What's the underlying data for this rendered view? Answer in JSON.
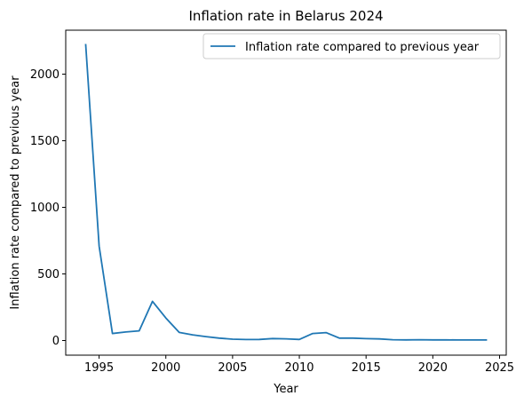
{
  "chart_data": {
    "type": "line",
    "title": "Inflation rate in Belarus 2024",
    "xlabel": "Year",
    "ylabel": "Inflation rate compared to previous year",
    "xlim": [
      1992.5,
      2025.5
    ],
    "ylim": [
      -110,
      2330
    ],
    "xticks": [
      1995,
      2000,
      2005,
      2010,
      2015,
      2020,
      2025
    ],
    "yticks": [
      0,
      500,
      1000,
      1500,
      2000
    ],
    "grid": false,
    "legend_position": "top-right",
    "series": [
      {
        "name": "Inflation rate compared to previous year",
        "color": "#1f77b4",
        "x": [
          1994,
          1995,
          1996,
          1997,
          1998,
          1999,
          2000,
          2001,
          2002,
          2003,
          2004,
          2005,
          2006,
          2007,
          2008,
          2009,
          2010,
          2011,
          2012,
          2013,
          2014,
          2015,
          2016,
          2017,
          2018,
          2019,
          2020,
          2021,
          2022,
          2023,
          2024
        ],
        "values": [
          2221,
          709,
          53,
          64,
          73,
          294,
          169,
          61,
          43,
          29,
          18,
          10,
          7,
          8,
          15,
          13,
          8,
          53,
          59,
          18,
          18,
          14,
          12,
          6,
          5,
          6,
          5,
          5,
          4,
          4,
          4
        ]
      }
    ]
  }
}
